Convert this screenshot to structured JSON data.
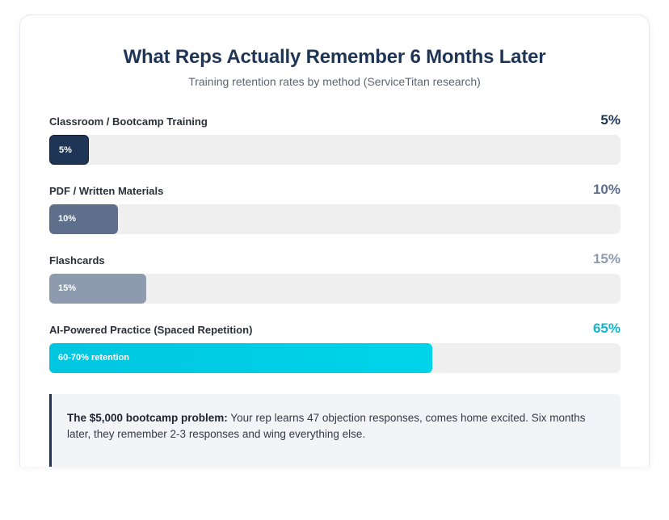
{
  "header": {
    "title": "What Reps Actually Remember 6 Months Later",
    "subtitle": "Training retention rates by method (ServiceTitan research)"
  },
  "chart_data": {
    "type": "bar",
    "orientation": "horizontal",
    "title": "What Reps Actually Remember 6 Months Later",
    "subtitle": "Training retention rates by method (ServiceTitan research)",
    "xlim": [
      0,
      100
    ],
    "unit": "%",
    "grid": false,
    "bars": [
      {
        "category": "Classroom / Bootcamp Training",
        "value": 5,
        "value_label": "5%",
        "bar_label": "5%",
        "color": "#1f3556",
        "value_color": "#1f3556"
      },
      {
        "category": "PDF / Written Materials",
        "value": 10,
        "value_label": "10%",
        "bar_label": "10%",
        "color": "#5d6f8a",
        "value_color": "#5d6f8a"
      },
      {
        "category": "Flashcards",
        "value": 15,
        "value_label": "15%",
        "bar_label": "15%",
        "color": "#8e9baf",
        "value_color": "#8e9baf"
      },
      {
        "category": "AI-Powered Practice (Spaced Repetition)",
        "value": 65,
        "value_label": "65%",
        "bar_label": "60-70% retention",
        "color": "#00c6e0",
        "color_end": "#00d4e8",
        "value_color": "#12b6cf"
      }
    ]
  },
  "callout": {
    "bold": "The $5,000 bootcamp problem:",
    "text": " Your rep learns 47 objection responses, comes home excited. Six months later, they remember 2-3 responses and wing everything else."
  }
}
